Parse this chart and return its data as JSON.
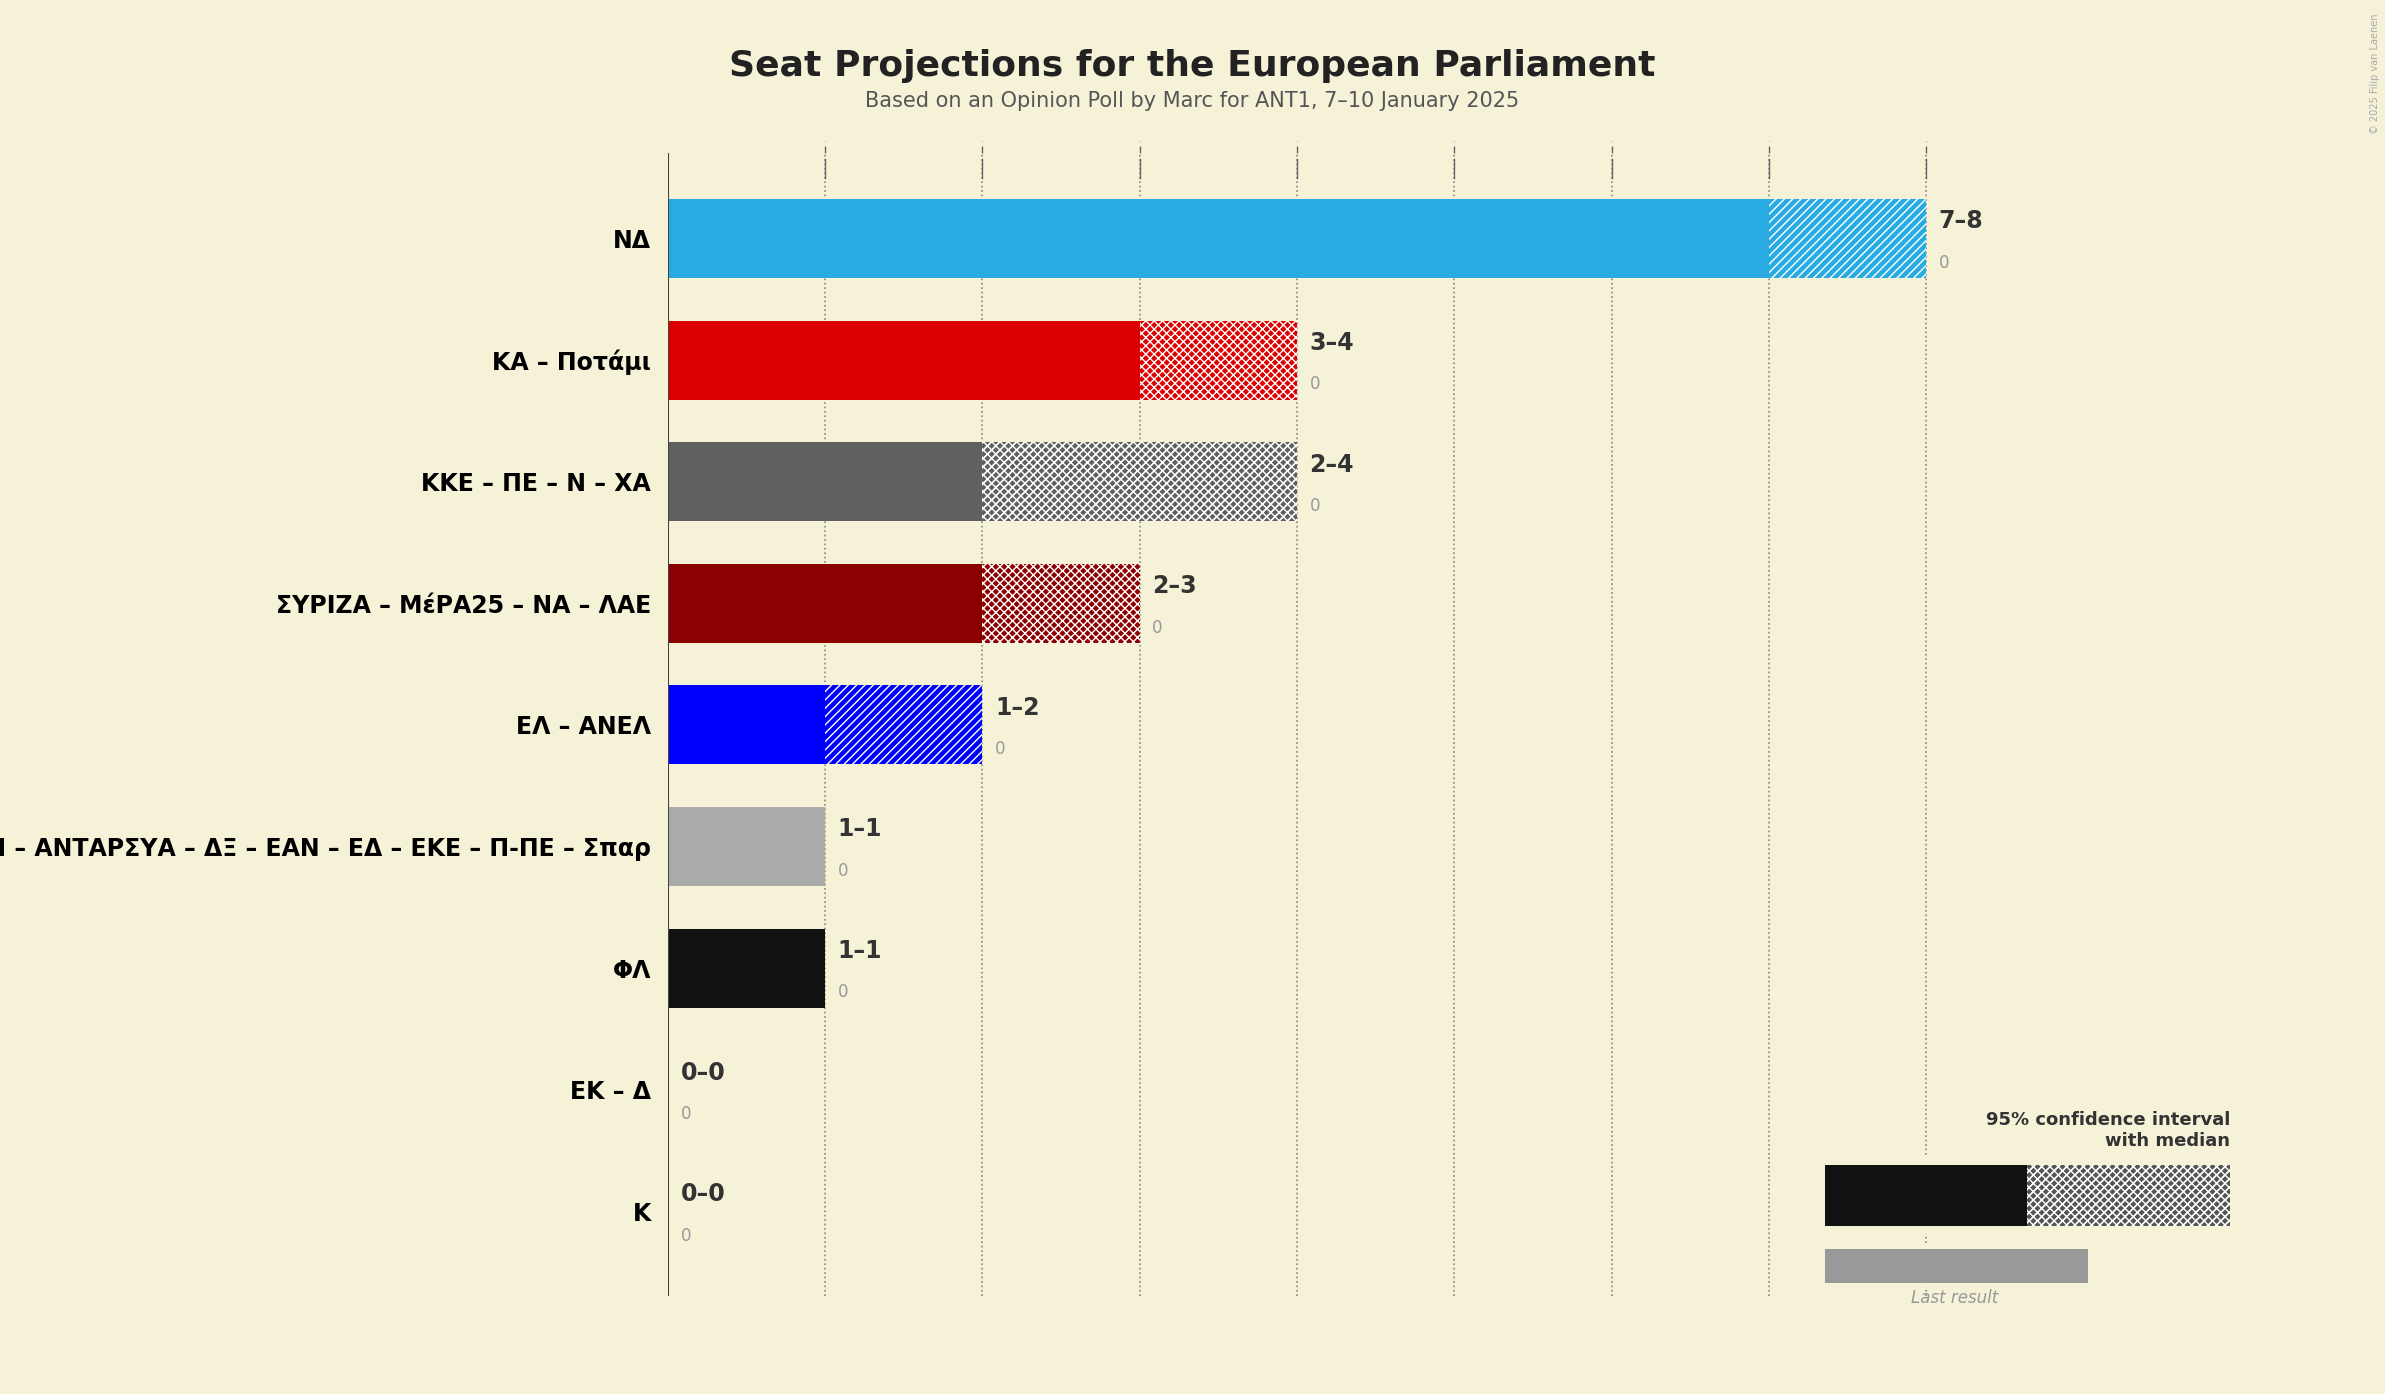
{
  "title": "Seat Projections for the European Parliament",
  "subtitle": "Based on an Opinion Poll by Marc for ANT1, 7–10 January 2025",
  "copyright": "© 2025 Filip van Laenen",
  "background_color": "#f5f2d8",
  "parties": [
    "NΔ",
    "ΚΑ – Ποτάμι",
    "ΚΚΕ – ΠΕ – Ν – ΧΑ",
    "ΣΥΡΙΖΑ – ΜέΡΑ25 – ΝΑ – ΛΑΕ",
    "ΕΛ – ΑΝΕΛ",
    "ΚΙΔΗ – ΑΝΤΑΡΣΥΑ – ΔΞ – ΕΑΝ – ΕΔ – ΕΚΕ – Π-ΠΕ – Σπαρ",
    "ΦΛ",
    "ΕΚ – Δ",
    "Κ"
  ],
  "median_seats": [
    7,
    3,
    2,
    2,
    1,
    1,
    1,
    0,
    0
  ],
  "max_seats": [
    8,
    4,
    4,
    3,
    2,
    1,
    1,
    0,
    0
  ],
  "labels": [
    "7–8",
    "3–4",
    "2–4",
    "2–3",
    "1–2",
    "1–1",
    "1–1",
    "0–0",
    "0–0"
  ],
  "colors": [
    "#29abe2",
    "#dd0000",
    "#606060",
    "#8b0000",
    "#0000ff",
    "#aaaaaa",
    "#111111",
    "#cccccc",
    "#cccccc"
  ],
  "hatch_ext_style": [
    "diagonal",
    "cross",
    "both",
    "cross",
    "diagonal",
    "none",
    "none",
    "none",
    "none"
  ],
  "xlim_max": 9,
  "dotted_positions": [
    1,
    2,
    3,
    4,
    5,
    6,
    7,
    8
  ],
  "bar_height": 0.65,
  "title_fontsize": 26,
  "subtitle_fontsize": 15,
  "party_fontsize": 17,
  "label_fontsize": 17,
  "last_result_color": "#999999",
  "legend_ci_text": "95% confidence interval\nwith median",
  "legend_last_text": "Last result"
}
